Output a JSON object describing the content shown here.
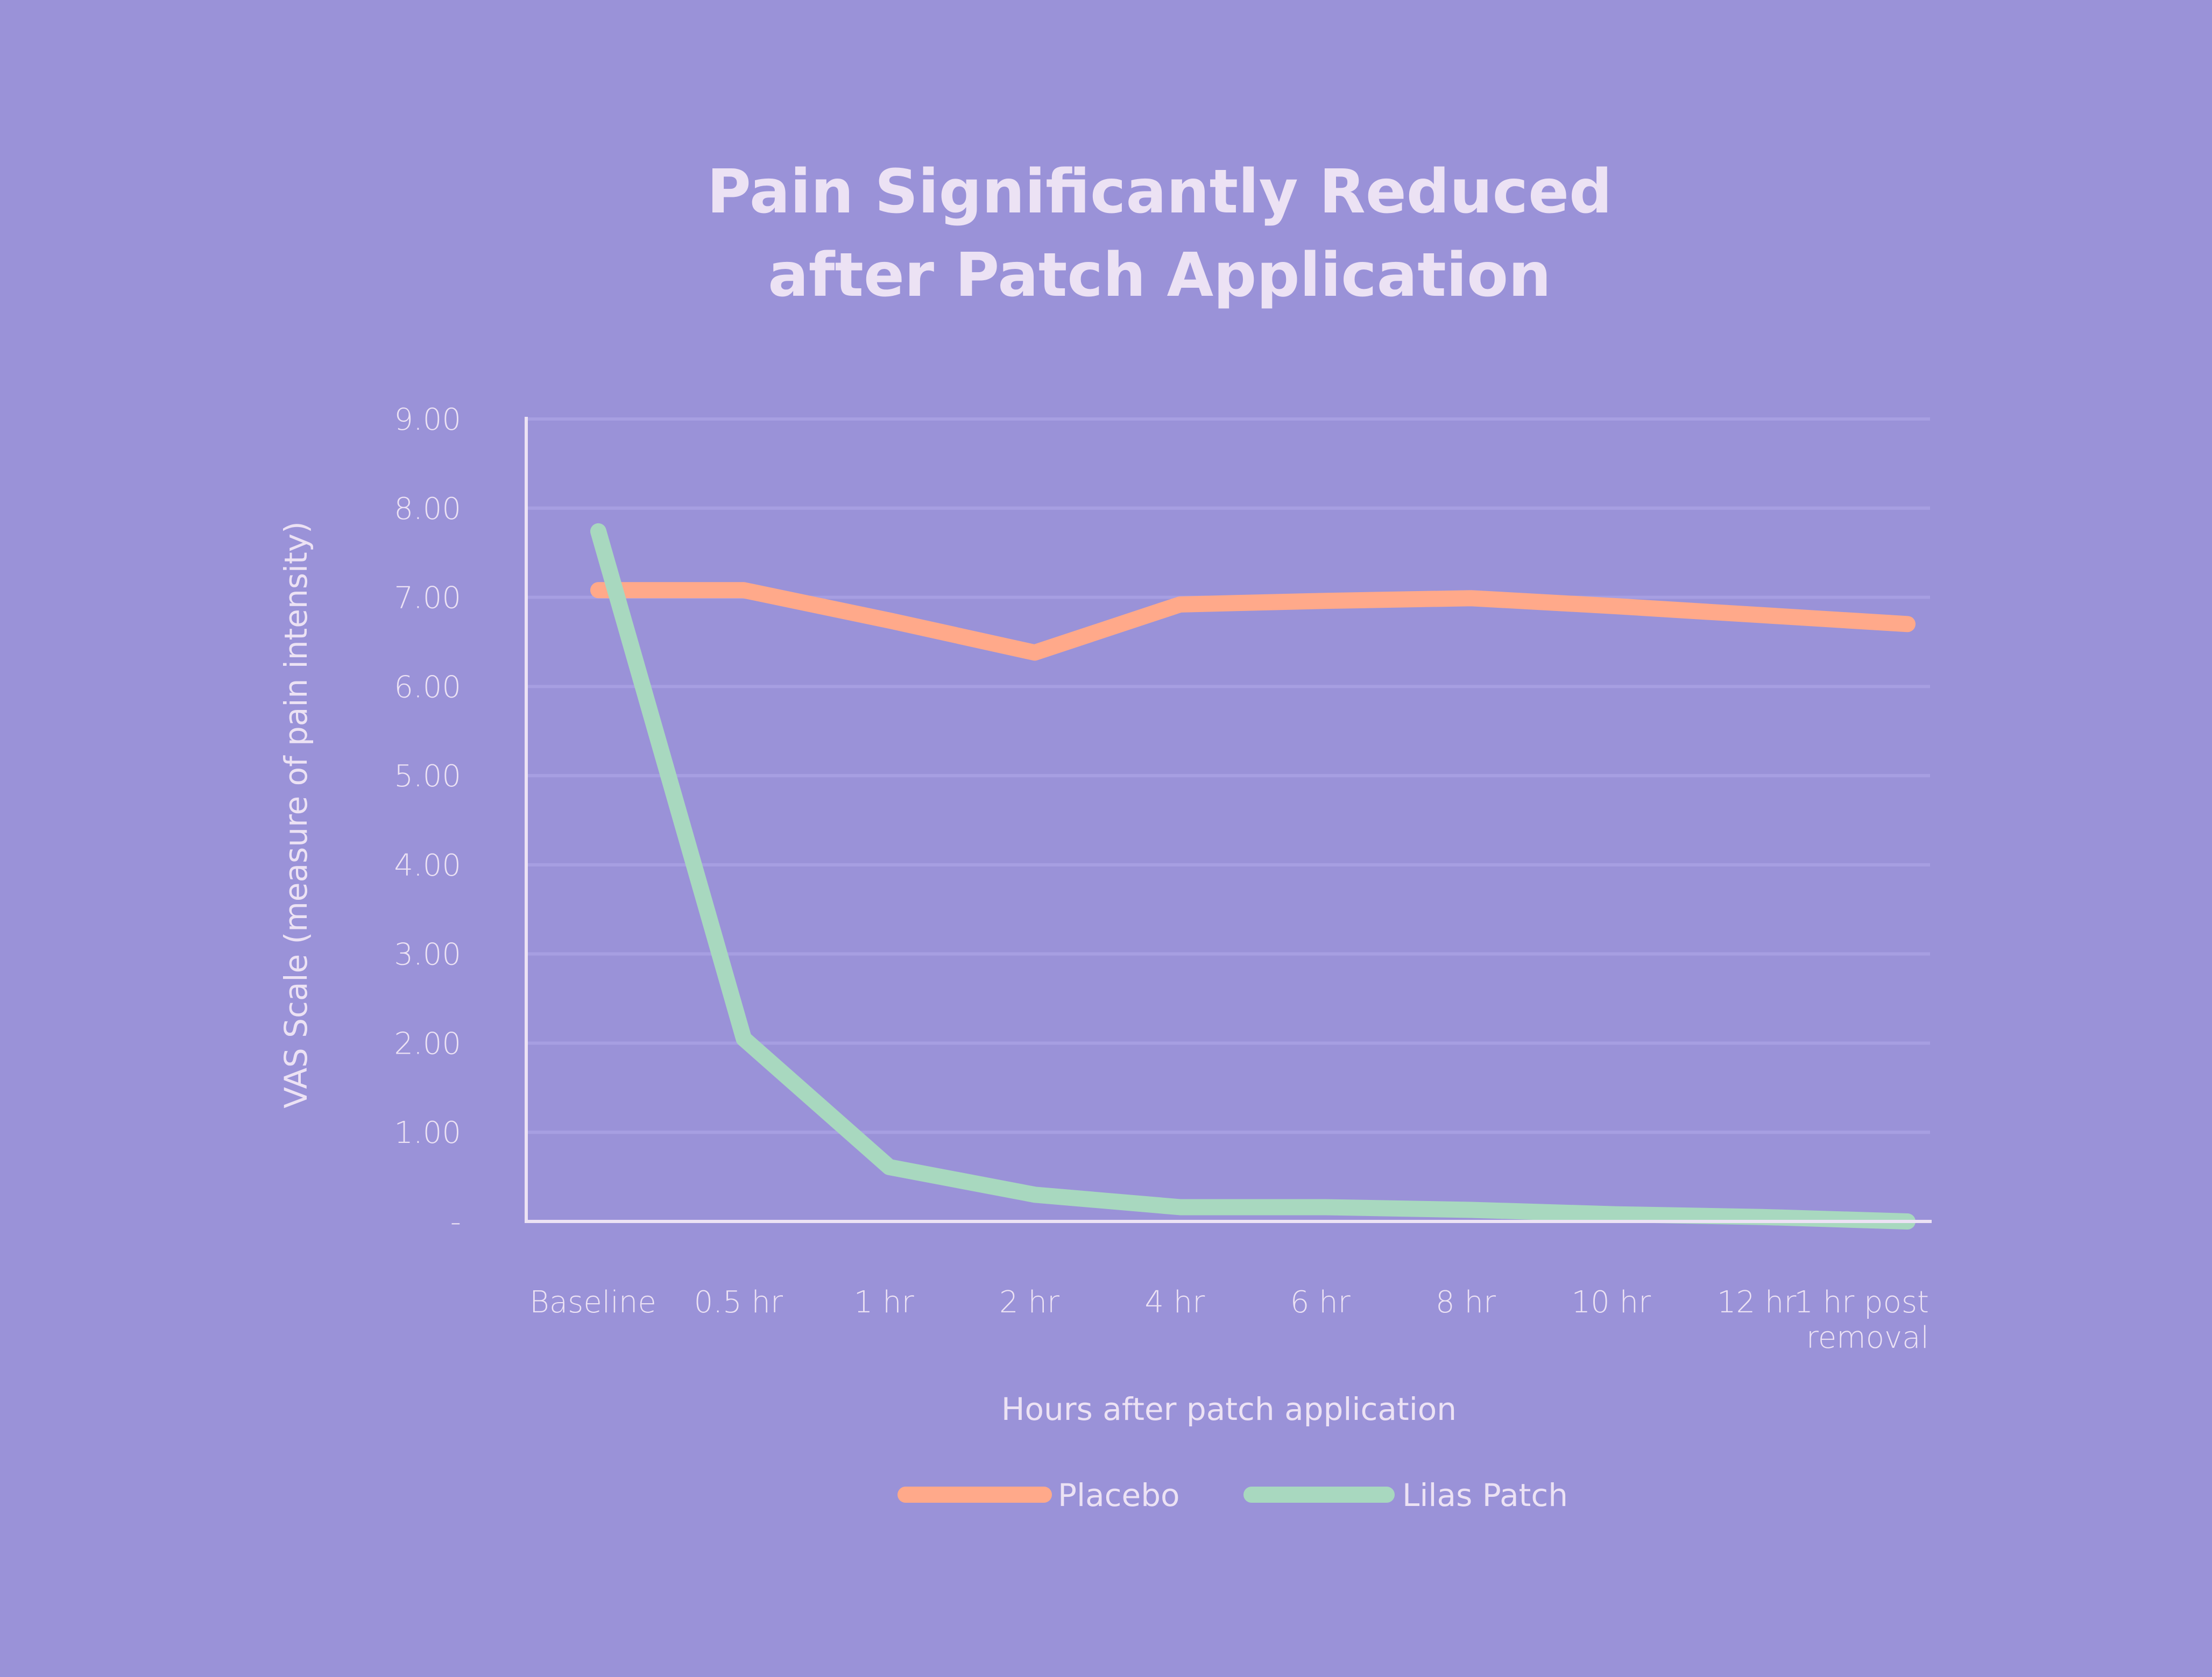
{
  "chart_data": {
    "type": "line",
    "title": [
      "Pain Significantly Reduced",
      "after Patch Application"
    ],
    "xlabel": "Hours after patch application",
    "ylabel": "VAS Scale (measure of pain intensity)",
    "ylim": [
      0,
      9
    ],
    "yticks": [
      0,
      1,
      2,
      3,
      4,
      5,
      6,
      7,
      8,
      9
    ],
    "ytick_labels": [
      "-",
      "1.00",
      "2.00",
      "3.00",
      "4.00",
      "5.00",
      "6.00",
      "7.00",
      "8.00",
      "9.00"
    ],
    "categories": [
      "Baseline",
      "0.5 hr",
      "1 hr",
      "2 hr",
      "4 hr",
      "6 hr",
      "8 hr",
      "10 hr",
      "12 hr",
      "1 hr post removal"
    ],
    "category_lines": [
      [
        "Baseline"
      ],
      [
        "0.5 hr"
      ],
      [
        "1 hr"
      ],
      [
        "2 hr"
      ],
      [
        "4 hr"
      ],
      [
        "6 hr"
      ],
      [
        "8 hr"
      ],
      [
        "10 hr"
      ],
      [
        "12 hr"
      ],
      [
        "1 hr post",
        "removal"
      ]
    ],
    "grid": true,
    "legend_position": "bottom",
    "series": [
      {
        "name": "Placebo",
        "color": "#ffa98a",
        "values": [
          7.08,
          7.08,
          6.74,
          6.38,
          6.92,
          6.96,
          6.99,
          6.9,
          6.8,
          6.7
        ]
      },
      {
        "name": "Lilas Patch",
        "color": "#a8d8bf",
        "values": [
          7.74,
          2.05,
          0.61,
          0.3,
          0.16,
          0.16,
          0.13,
          0.08,
          0.05,
          0.0
        ]
      }
    ]
  }
}
